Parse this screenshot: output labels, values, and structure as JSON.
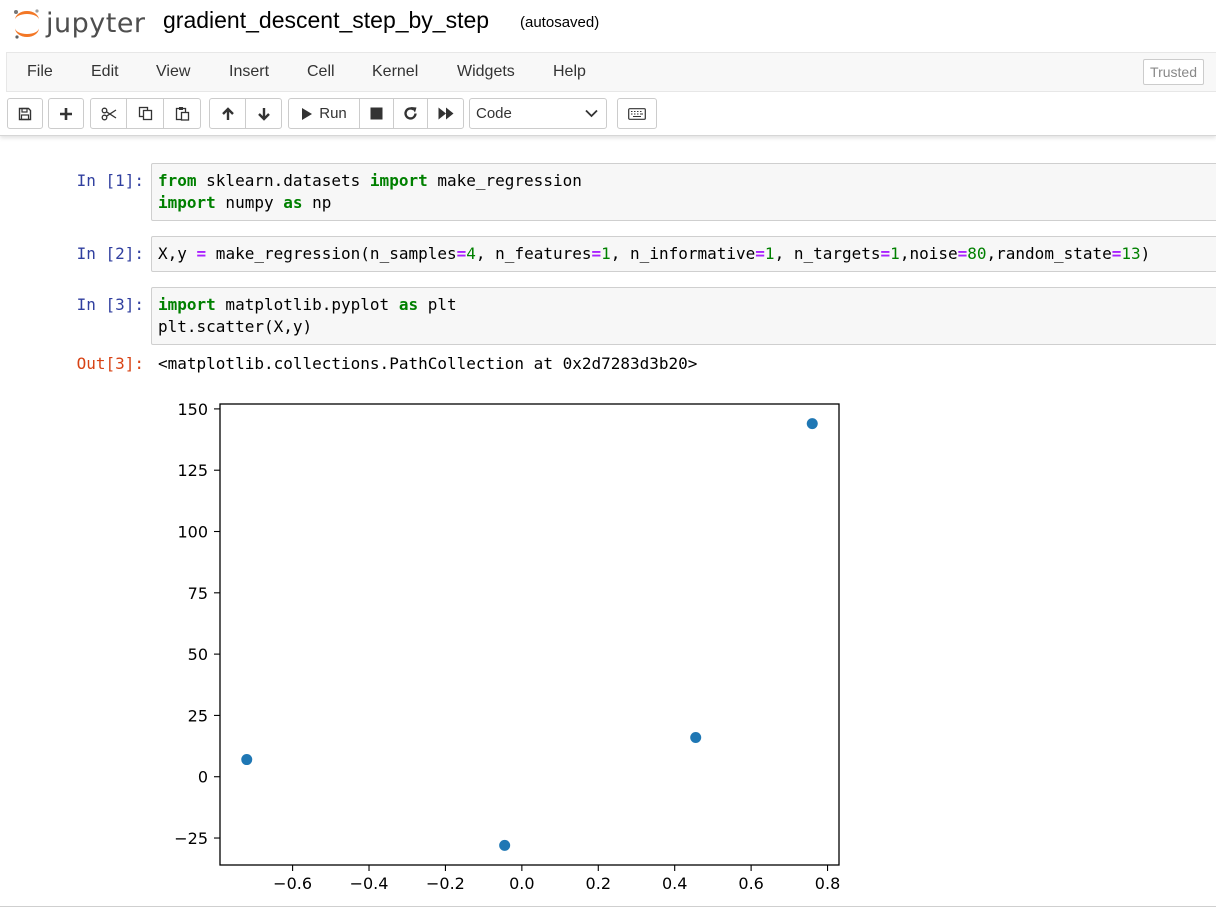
{
  "header": {
    "logo_text": "jupyter",
    "notebook_title": "gradient_descent_step_by_step",
    "save_status": "(autosaved)",
    "trusted_label": "Trusted"
  },
  "menu": {
    "items": [
      "File",
      "Edit",
      "View",
      "Insert",
      "Cell",
      "Kernel",
      "Widgets",
      "Help"
    ]
  },
  "toolbar": {
    "run_label": "Run",
    "cell_type": "Code",
    "icons": [
      "save-icon",
      "plus-icon",
      "scissors-icon",
      "copy-icon",
      "paste-icon",
      "arrow-up-icon",
      "arrow-down-icon",
      "run-icon",
      "stop-icon",
      "restart-icon",
      "fast-forward-icon",
      "keyboard-icon"
    ]
  },
  "cells": [
    {
      "prompt": "In [1]:",
      "lines": [
        [
          {
            "t": "from",
            "c": "kw"
          },
          {
            "t": " sklearn.datasets ",
            "c": ""
          },
          {
            "t": "import",
            "c": "kw"
          },
          {
            "t": " make_regression",
            "c": ""
          }
        ],
        [
          {
            "t": "import",
            "c": "kw"
          },
          {
            "t": " numpy ",
            "c": ""
          },
          {
            "t": "as",
            "c": "kw"
          },
          {
            "t": " np",
            "c": ""
          }
        ]
      ]
    },
    {
      "prompt": "In [2]:",
      "lines": [
        [
          {
            "t": "X,y ",
            "c": ""
          },
          {
            "t": "=",
            "c": "op"
          },
          {
            "t": " make_regression(n_samples",
            "c": ""
          },
          {
            "t": "=",
            "c": "op"
          },
          {
            "t": "4",
            "c": "num"
          },
          {
            "t": ", n_features",
            "c": ""
          },
          {
            "t": "=",
            "c": "op"
          },
          {
            "t": "1",
            "c": "num"
          },
          {
            "t": ", n_informative",
            "c": ""
          },
          {
            "t": "=",
            "c": "op"
          },
          {
            "t": "1",
            "c": "num"
          },
          {
            "t": ", n_targets",
            "c": ""
          },
          {
            "t": "=",
            "c": "op"
          },
          {
            "t": "1",
            "c": "num"
          },
          {
            "t": ",noise",
            "c": ""
          },
          {
            "t": "=",
            "c": "op"
          },
          {
            "t": "80",
            "c": "num"
          },
          {
            "t": ",random_state",
            "c": ""
          },
          {
            "t": "=",
            "c": "op"
          },
          {
            "t": "13",
            "c": "num"
          },
          {
            "t": ")",
            "c": ""
          }
        ]
      ]
    },
    {
      "prompt": "In [3]:",
      "lines": [
        [
          {
            "t": "import",
            "c": "kw"
          },
          {
            "t": " matplotlib.pyplot ",
            "c": ""
          },
          {
            "t": "as",
            "c": "kw"
          },
          {
            "t": " plt",
            "c": ""
          }
        ],
        [
          {
            "t": "plt.scatter(X,y)",
            "c": ""
          }
        ]
      ]
    }
  ],
  "output": {
    "prompt": "Out[3]:",
    "text": "<matplotlib.collections.PathCollection at 0x2d7283d3b20>"
  },
  "chart_data": {
    "type": "scatter",
    "x": [
      -0.72,
      -0.045,
      0.455,
      0.76
    ],
    "y": [
      7,
      -28,
      16,
      144
    ],
    "xlim": [
      -0.79,
      0.83
    ],
    "ylim": [
      -36,
      152
    ],
    "xticks": [
      -0.6,
      -0.4,
      -0.2,
      0.0,
      0.2,
      0.4,
      0.6,
      0.8
    ],
    "xtick_labels": [
      "−0.6",
      "−0.4",
      "−0.2",
      "0.0",
      "0.2",
      "0.4",
      "0.6",
      "0.8"
    ],
    "yticks": [
      -25,
      0,
      25,
      50,
      75,
      100,
      125,
      150
    ],
    "ytick_labels": [
      "−25",
      "0",
      "25",
      "50",
      "75",
      "100",
      "125",
      "150"
    ],
    "marker_color": "#1f77b4",
    "grid": false,
    "title": "",
    "xlabel": "",
    "ylabel": ""
  }
}
